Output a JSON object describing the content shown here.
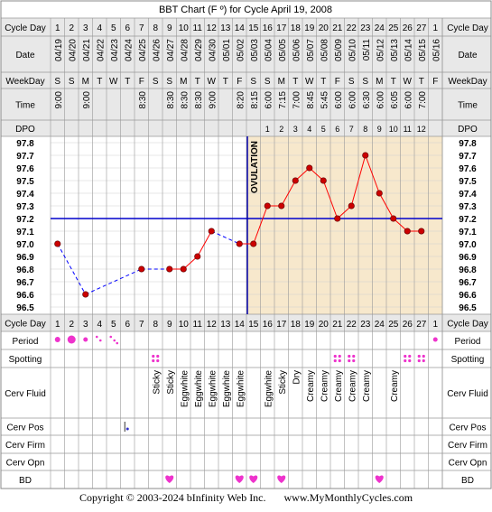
{
  "chart_data": {
    "type": "line",
    "title": "BBT Chart (F º) for Cycle April 19, 2008",
    "row_labels": {
      "cycle_day": "Cycle Day",
      "date": "Date",
      "weekday": "WeekDay",
      "time": "Time",
      "dpo": "DPO",
      "period": "Period",
      "spotting": "Spotting",
      "cerv_fluid": "Cerv Fluid",
      "cerv_pos": "Cerv Pos",
      "cerv_firm": "Cerv Firm",
      "cerv_opn": "Cerv Opn",
      "bd": "BD"
    },
    "cycle_days": [
      "1",
      "2",
      "3",
      "4",
      "5",
      "6",
      "7",
      "8",
      "9",
      "10",
      "11",
      "12",
      "13",
      "14",
      "15",
      "16",
      "17",
      "18",
      "19",
      "20",
      "21",
      "22",
      "23",
      "24",
      "25",
      "26",
      "27",
      "1"
    ],
    "dates": [
      "04/19",
      "04/20",
      "04/21",
      "04/22",
      "04/23",
      "04/24",
      "04/25",
      "04/26",
      "04/27",
      "04/28",
      "04/29",
      "04/30",
      "05/01",
      "05/02",
      "05/03",
      "05/04",
      "05/05",
      "05/06",
      "05/07",
      "05/08",
      "05/09",
      "05/10",
      "05/11",
      "05/12",
      "05/13",
      "05/14",
      "05/15",
      "05/16"
    ],
    "weekdays": [
      "S",
      "S",
      "M",
      "T",
      "W",
      "T",
      "F",
      "S",
      "S",
      "M",
      "T",
      "W",
      "T",
      "F",
      "S",
      "S",
      "M",
      "T",
      "W",
      "T",
      "F",
      "S",
      "S",
      "M",
      "T",
      "W",
      "T",
      "F"
    ],
    "times": [
      "9:00",
      "",
      "9:00",
      "",
      "",
      "",
      "8:30",
      "",
      "8:30",
      "8:30",
      "8:30",
      "9:00",
      "",
      "8:20",
      "8:15",
      "6:00",
      "7:15",
      "7:00",
      "8:45",
      "5:45",
      "6:00",
      "6:00",
      "6:30",
      "6:00",
      "6:05",
      "6:00",
      "7:00",
      ""
    ],
    "dpo": [
      "",
      "",
      "",
      "",
      "",
      "",
      "",
      "",
      "",
      "",
      "",
      "",
      "",
      "",
      "",
      "1",
      "2",
      "3",
      "4",
      "5",
      "6",
      "7",
      "8",
      "9",
      "10",
      "11",
      "12",
      ""
    ],
    "temps": [
      97.0,
      null,
      96.6,
      null,
      null,
      null,
      96.8,
      null,
      96.8,
      96.8,
      96.9,
      97.1,
      null,
      97.0,
      97.0,
      97.3,
      97.3,
      97.5,
      97.6,
      97.5,
      97.2,
      97.3,
      97.7,
      97.4,
      97.2,
      97.1,
      97.1,
      null
    ],
    "y_ticks": [
      "97.8",
      "97.7",
      "97.6",
      "97.5",
      "97.4",
      "97.3",
      "97.2",
      "97.1",
      "97.0",
      "96.9",
      "96.8",
      "96.7",
      "96.6",
      "96.5"
    ],
    "ylim": [
      96.5,
      97.8
    ],
    "coverline": 97.2,
    "ovulation_day_index": 14,
    "ovulation_label": "OVULATION",
    "period": [
      "heavy",
      "heavy",
      "medium",
      "light",
      "light",
      "",
      "",
      "",
      "",
      "",
      "",
      "",
      "",
      "",
      "",
      "",
      "",
      "",
      "",
      "",
      "",
      "",
      "",
      "",
      "",
      "",
      "",
      "medium"
    ],
    "spotting": [
      false,
      false,
      false,
      false,
      false,
      false,
      false,
      true,
      false,
      false,
      false,
      false,
      false,
      false,
      false,
      false,
      false,
      false,
      false,
      false,
      true,
      true,
      false,
      false,
      false,
      true,
      true,
      false
    ],
    "cerv_fluid": [
      "",
      "",
      "",
      "",
      "",
      "",
      "",
      "Sticky",
      "Sticky",
      "Eggwhite",
      "Eggwhite",
      "Eggwhite",
      "Eggwhite",
      "Eggwhite",
      "",
      "Eggwhite",
      "Sticky",
      "Dry",
      "Creamy",
      "Creamy",
      "Creamy",
      "Creamy",
      "Creamy",
      "",
      "Creamy",
      "",
      "",
      ""
    ],
    "cerv_pos_day_index": 5,
    "bd": [
      false,
      false,
      false,
      false,
      false,
      false,
      false,
      false,
      true,
      false,
      false,
      false,
      false,
      true,
      true,
      false,
      true,
      false,
      false,
      false,
      false,
      false,
      false,
      true,
      false,
      false,
      false,
      false
    ],
    "colors": {
      "grid": "#999999",
      "header_bg": "#e8e8e8",
      "luteal_bg": "#f7e8cc",
      "line": "#ff0000",
      "point": "#cc0000",
      "dashed": "#0000ff",
      "coverline": "#0000cc",
      "ovulation": "#0000aa",
      "marker": "#ee33cc"
    }
  },
  "footer": {
    "copyright": "Copyright © 2003-2024 bInfinity Web Inc.",
    "site": "www.MyMonthlyCycles.com"
  }
}
